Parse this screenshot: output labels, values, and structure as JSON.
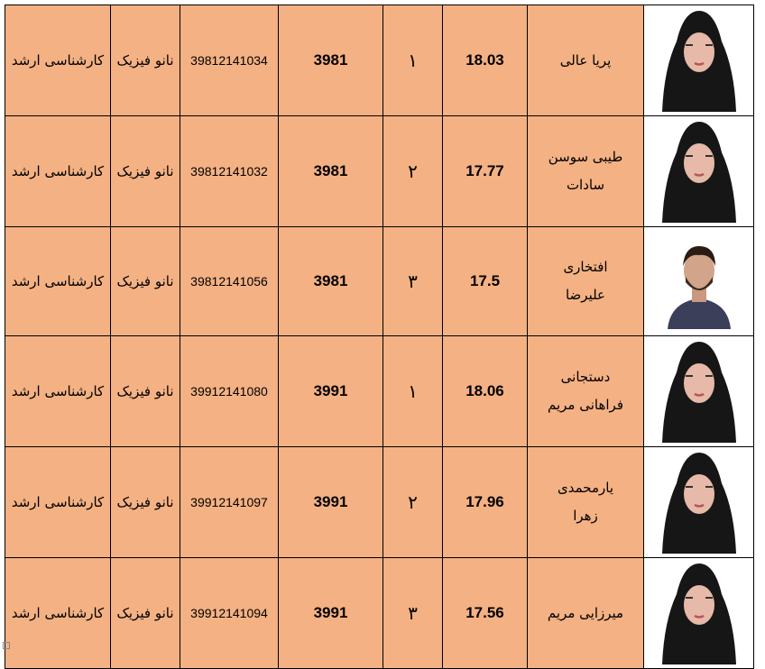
{
  "rows": [
    {
      "name": "پریا عالی",
      "score": "18.03",
      "rank": "۱",
      "entry": "3981",
      "student_id": "39812141034",
      "field": "نانو فیزیک",
      "degree": "کارشناسی ارشد",
      "photo": "female-portrait"
    },
    {
      "name": "طیبی سوسن سادات",
      "score": "17.77",
      "rank": "۲",
      "entry": "3981",
      "student_id": "39812141032",
      "field": "نانو فیزیک",
      "degree": "کارشناسی ارشد",
      "photo": "female-portrait"
    },
    {
      "name": "افتخاری علیرضا",
      "score": "17.5",
      "rank": "۳",
      "entry": "3981",
      "student_id": "39812141056",
      "field": "نانو فیزیک",
      "degree": "کارشناسی ارشد",
      "photo": "male-portrait"
    },
    {
      "name": "دستجانی فراهانی مریم",
      "score": "18.06",
      "rank": "۱",
      "entry": "3991",
      "student_id": "39912141080",
      "field": "نانو فیزیک",
      "degree": "کارشناسی ارشد",
      "photo": "female-portrait"
    },
    {
      "name": "یارمحمدی زهرا",
      "score": "17.96",
      "rank": "۲",
      "entry": "3991",
      "student_id": "39912141097",
      "field": "نانو فیزیک",
      "degree": "کارشناسی ارشد",
      "photo": "female-portrait"
    },
    {
      "name": "میرزایی مریم",
      "score": "17.56",
      "rank": "۳",
      "entry": "3991",
      "student_id": "39912141094",
      "field": "نانو فیزیک",
      "degree": "کارشناسی ارشد",
      "photo": "female-portrait"
    }
  ],
  "colors": {
    "cell": "#f4b183",
    "border": "#000000"
  }
}
